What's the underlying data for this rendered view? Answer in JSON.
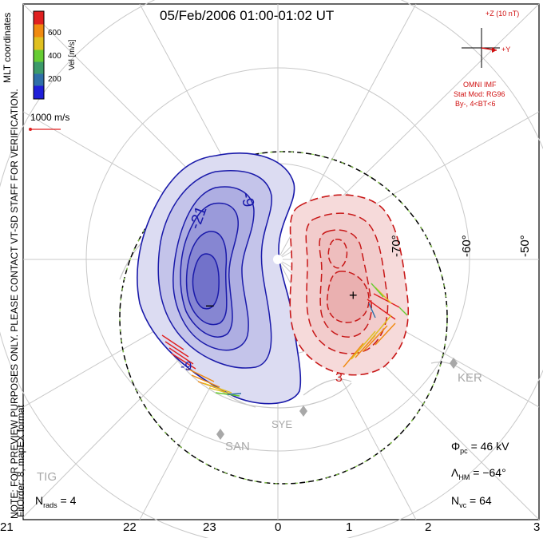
{
  "title": "05/Feb/2006 01:00-01:02 UT",
  "side_text": {
    "mlt": "MLT coordinates",
    "note": "NOTE: FOR PREVIEW PURPOSES ONLY. PLEASE CONTACT VT-SD STAFF FOR VERIFICATION.",
    "fit": "FitOrder: 8, mapEX format"
  },
  "colorbar": {
    "label": "Vel [m/s]",
    "ticks": [
      "600",
      "400",
      "200"
    ],
    "colors": [
      "#1f1fd9",
      "#2f6fa8",
      "#3c9a6a",
      "#66cc33",
      "#e0c020",
      "#f08a10",
      "#e02020"
    ]
  },
  "scale_vector": {
    "label": "1000 m/s",
    "color": "#e02020"
  },
  "imf": {
    "z_label": "+Z (10 nT)",
    "y_label": "+Y",
    "source": "OMNI IMF",
    "model": "Stat Mod: RG96",
    "condition": "By-, 4<BT<6",
    "color": "#d01010"
  },
  "mlt_labels": [
    "21",
    "22",
    "23",
    "0",
    "1",
    "2",
    "3"
  ],
  "latitude_labels": [
    "-70°",
    "-60°",
    "-50°"
  ],
  "contour_labels": {
    "neg_outer": "-9",
    "neg_inner": "-21",
    "neg_lower": "-9",
    "pos_lower": "3"
  },
  "markers": {
    "min": "−",
    "max": "+"
  },
  "sites": [
    "KER",
    "SYE",
    "SAN",
    "TIG"
  ],
  "stats": {
    "phi_pc": {
      "symbol": "Φ",
      "sub": "pc",
      "text": " = 46 kV"
    },
    "lambda_hm": {
      "symbol": "Λ",
      "sub": "HM",
      "text": " = −64°"
    },
    "n_vc": {
      "symbol": "N",
      "sub": "vc",
      "text": " = 64"
    },
    "n_rads": {
      "symbol": "N",
      "sub": "rads",
      "text": " = 4"
    }
  }
}
